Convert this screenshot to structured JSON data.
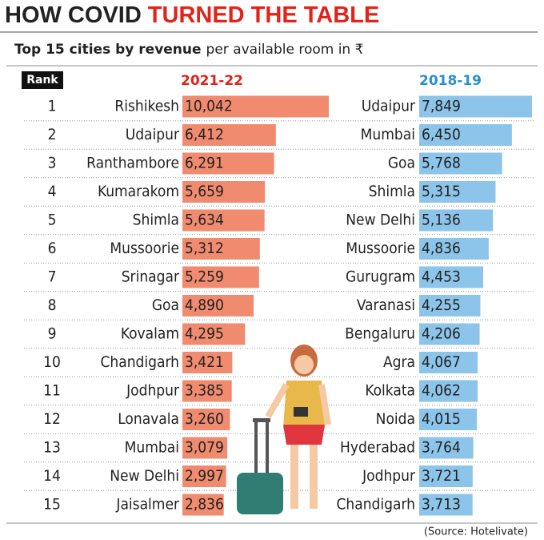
{
  "chart_data": {
    "type": "bar",
    "title": {
      "lead": "HOW COVID",
      "highlight": "TURNED THE TABLE"
    },
    "subtitle": {
      "bold": "Top 15 cities by revenue",
      "rest": "per available room in ₹"
    },
    "rank_label": "Rank",
    "ranks": [
      1,
      2,
      3,
      4,
      5,
      6,
      7,
      8,
      9,
      10,
      11,
      12,
      13,
      14,
      15
    ],
    "series": [
      {
        "name": "2021-22",
        "color": "#f08b6f",
        "categories": [
          "Rishikesh",
          "Udaipur",
          "Ranthambore",
          "Kumarakom",
          "Shimla",
          "Mussoorie",
          "Srinagar",
          "Goa",
          "Kovalam",
          "Chandigarh",
          "Jodhpur",
          "Lonavala",
          "Mumbai",
          "New Delhi",
          "Jaisalmer"
        ],
        "values": [
          10042,
          6412,
          6291,
          5659,
          5634,
          5312,
          5259,
          4890,
          4295,
          3421,
          3385,
          3260,
          3079,
          2997,
          2836
        ],
        "value_labels": [
          "10,042",
          "6,412",
          "6,291",
          "5,659",
          "5,634",
          "5,312",
          "5,259",
          "4,890",
          "4,295",
          "3,421",
          "3,385",
          "3,260",
          "3,079",
          "2,997",
          "2,836"
        ]
      },
      {
        "name": "2018-19",
        "color": "#8cc4ea",
        "categories": [
          "Udaipur",
          "Mumbai",
          "Goa",
          "Shimla",
          "New Delhi",
          "Mussoorie",
          "Gurugram",
          "Varanasi",
          "Bengaluru",
          "Agra",
          "Kolkata",
          "Noida",
          "Hyderabad",
          "Jodhpur",
          "Chandigarh"
        ],
        "values": [
          7849,
          6450,
          5768,
          5315,
          5136,
          4836,
          4453,
          4255,
          4206,
          4067,
          4062,
          4015,
          3764,
          3721,
          3713
        ],
        "value_labels": [
          "7,849",
          "6,450",
          "5,768",
          "5,315",
          "5,136",
          "4,836",
          "4,453",
          "4,255",
          "4,206",
          "4,067",
          "4,062",
          "4,015",
          "3,764",
          "3,721",
          "3,713"
        ]
      }
    ],
    "source": "(Source: Hotelivate)"
  }
}
